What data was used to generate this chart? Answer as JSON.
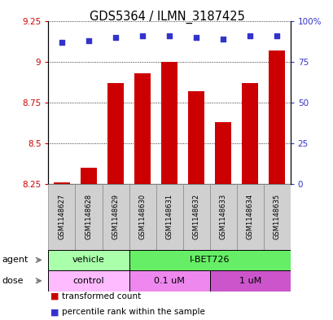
{
  "title": "GDS5364 / ILMN_3187425",
  "samples": [
    "GSM1148627",
    "GSM1148628",
    "GSM1148629",
    "GSM1148630",
    "GSM1148631",
    "GSM1148632",
    "GSM1148633",
    "GSM1148634",
    "GSM1148635"
  ],
  "bar_values": [
    8.26,
    8.35,
    8.87,
    8.93,
    9.0,
    8.82,
    8.63,
    8.87,
    9.07
  ],
  "percentile_values": [
    87,
    88,
    90,
    91,
    91,
    90,
    89,
    91,
    91
  ],
  "bar_bottom": 8.25,
  "ylim": [
    8.25,
    9.25
  ],
  "y2lim": [
    0,
    100
  ],
  "yticks": [
    8.25,
    8.5,
    8.75,
    9.0,
    9.25
  ],
  "ytick_labels": [
    "8.25",
    "8.5",
    "8.75",
    "9",
    "9.25"
  ],
  "y2ticks": [
    0,
    25,
    50,
    75,
    100
  ],
  "y2tick_labels": [
    "0",
    "25",
    "50",
    "75",
    "100%"
  ],
  "bar_color": "#cc0000",
  "dot_color": "#3333cc",
  "bar_width": 0.6,
  "agent_labels": [
    {
      "text": "vehicle",
      "start": 0,
      "end": 2,
      "color": "#aaffaa"
    },
    {
      "text": "I-BET726",
      "start": 3,
      "end": 8,
      "color": "#66ee66"
    }
  ],
  "dose_labels": [
    {
      "text": "control",
      "start": 0,
      "end": 2,
      "color": "#ffbbff"
    },
    {
      "text": "0.1 uM",
      "start": 3,
      "end": 5,
      "color": "#ee88ee"
    },
    {
      "text": "1 uM",
      "start": 6,
      "end": 8,
      "color": "#cc55cc"
    }
  ],
  "agent_row_label": "agent",
  "dose_row_label": "dose",
  "legend_red": "transformed count",
  "legend_blue": "percentile rank within the sample",
  "left_tick_color": "#cc0000",
  "right_tick_color": "#3333cc"
}
